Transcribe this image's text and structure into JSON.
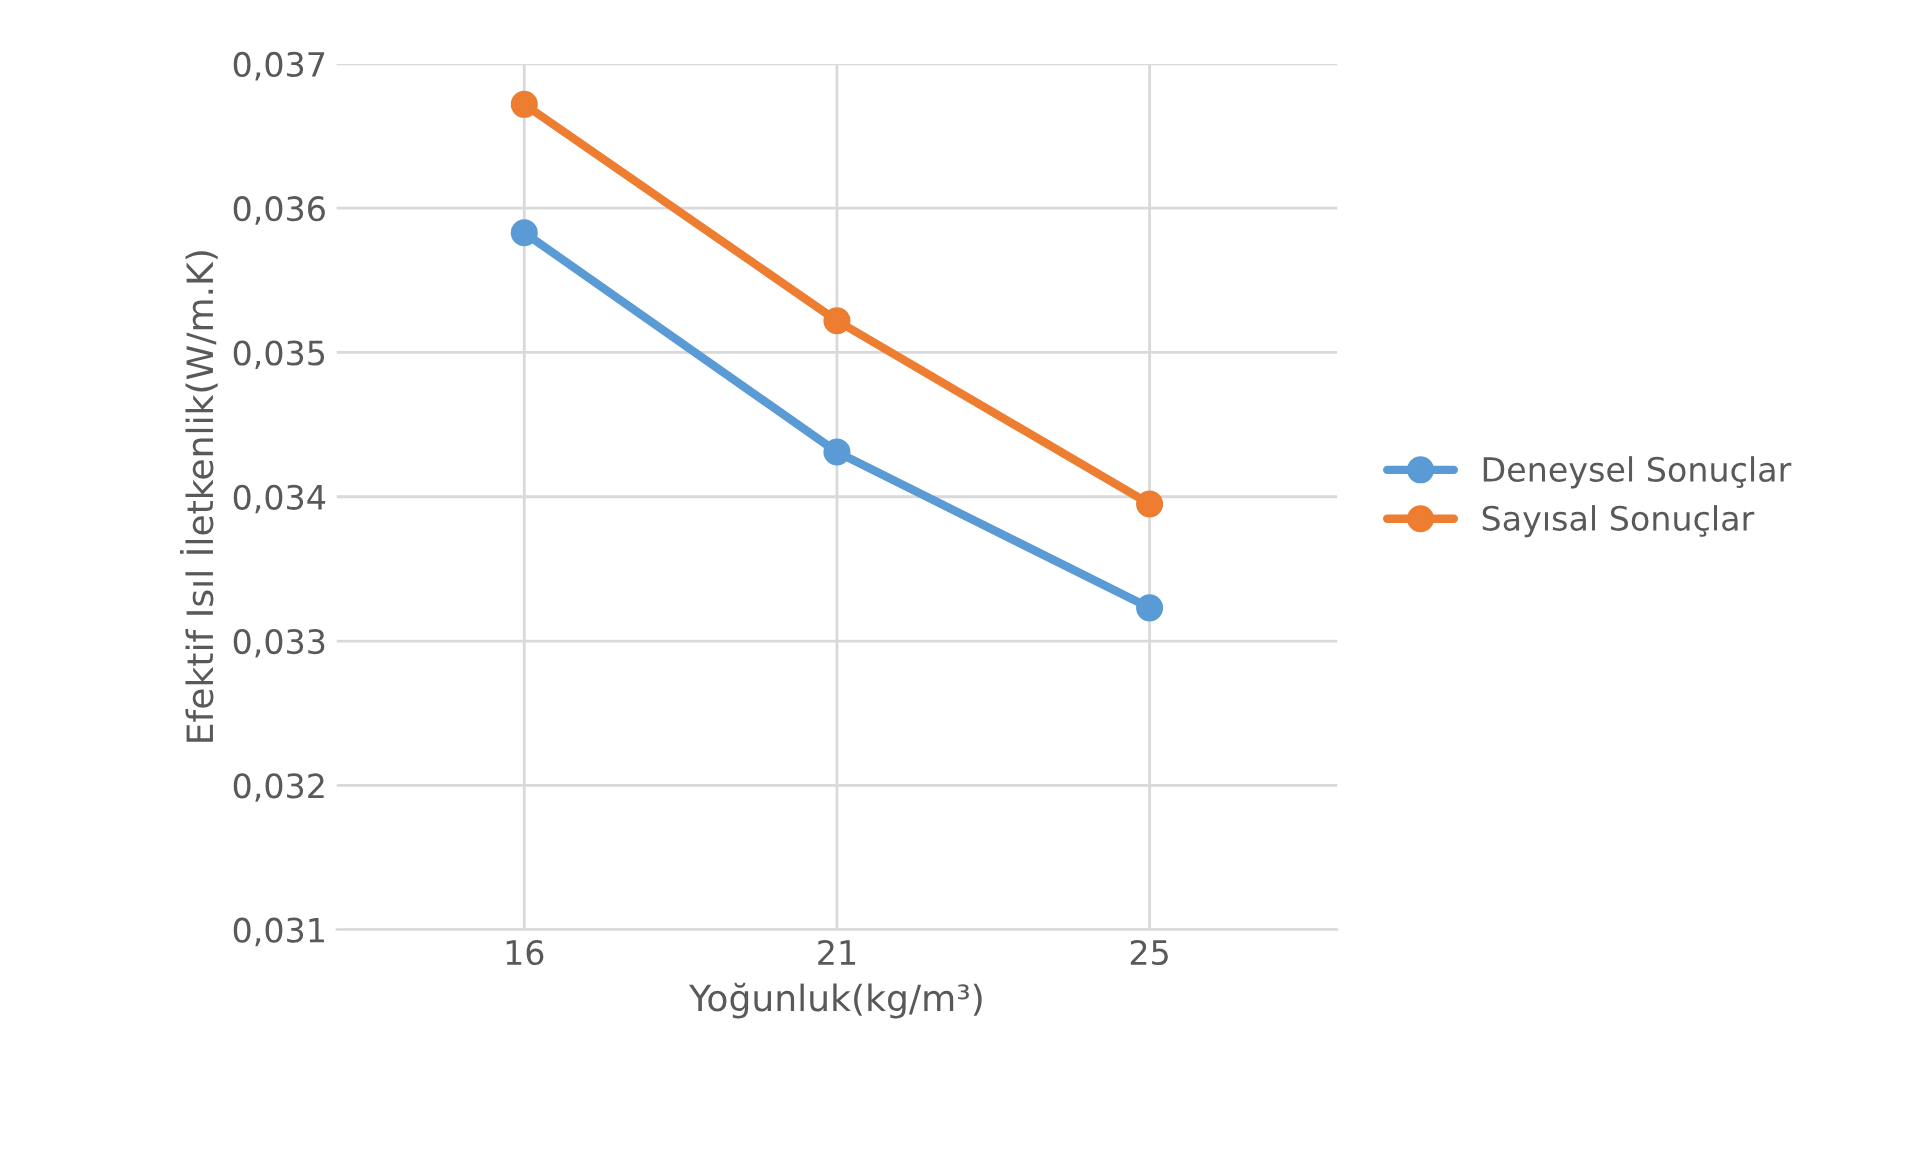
{
  "chart_data": {
    "type": "line",
    "xlabel": "Yoğunluk(kg/m³)",
    "ylabel": "Efektif Isıl İletkenlik(W/m.K)",
    "categories": [
      "16",
      "21",
      "25"
    ],
    "series": [
      {
        "name": "Deneysel Sonuçlar",
        "color": "#5b9bd5",
        "values": [
          0.03583,
          0.03431,
          0.03323
        ]
      },
      {
        "name": "Sayısal Sonuçlar",
        "color": "#ed7d31",
        "values": [
          0.03672,
          0.03522,
          0.03395
        ]
      }
    ],
    "ylim": [
      0.031,
      0.037
    ],
    "yticks": [
      {
        "value": 0.031,
        "label": "0,031"
      },
      {
        "value": 0.032,
        "label": "0,032"
      },
      {
        "value": 0.033,
        "label": "0,033"
      },
      {
        "value": 0.034,
        "label": "0,034"
      },
      {
        "value": 0.035,
        "label": "0,035"
      },
      {
        "value": 0.036,
        "label": "0,036"
      },
      {
        "value": 0.037,
        "label": "0,037"
      }
    ],
    "grid": true,
    "legend": "right",
    "marker": "circle",
    "line_style": "solid"
  }
}
